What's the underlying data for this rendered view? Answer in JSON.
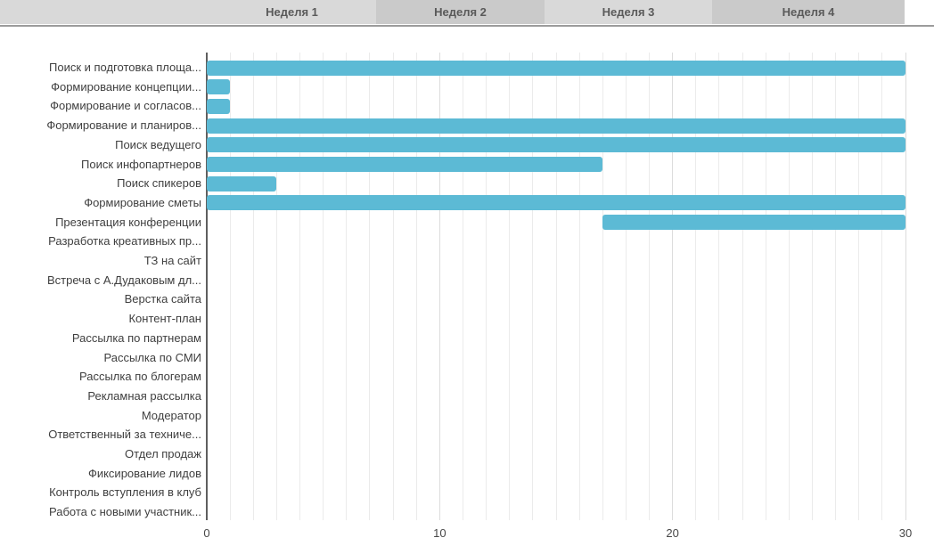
{
  "header": {
    "tabs": [
      {
        "label": "Неделя 1"
      },
      {
        "label": "Неделя 2"
      },
      {
        "label": "Неделя 3"
      },
      {
        "label": "Неделя 4"
      }
    ],
    "colors": {
      "light": "#d9d9d9",
      "dark": "#cacaca",
      "underline": "#9c9c9c",
      "text": "#5a5a5a"
    }
  },
  "chart_data": {
    "type": "bar",
    "orientation": "horizontal",
    "title": "",
    "xlabel": "",
    "ylabel": "",
    "xlim": [
      0,
      30
    ],
    "xticks": [
      0,
      10,
      20,
      30
    ],
    "grid": "vertical gridlines every 1 unit, major at 10/20/30, dark axis at 0",
    "legend": "none",
    "bar_color": "#5cbad5",
    "tasks": [
      {
        "label": "Поиск и подготовка площа...",
        "start": 0,
        "end": 30
      },
      {
        "label": "Формирование концепции...",
        "start": 0,
        "end": 1
      },
      {
        "label": "Формирование и согласов...",
        "start": 0,
        "end": 1
      },
      {
        "label": "Формирование и планиров...",
        "start": 0,
        "end": 30
      },
      {
        "label": "Поиск ведущего",
        "start": 0,
        "end": 30
      },
      {
        "label": "Поиск инфопартнеров",
        "start": 0,
        "end": 17
      },
      {
        "label": "Поиск спикеров",
        "start": 0,
        "end": 3
      },
      {
        "label": "Формирование сметы",
        "start": 0,
        "end": 30
      },
      {
        "label": "Презентация конференции",
        "start": 17,
        "end": 30
      },
      {
        "label": "Разработка креативных пр...",
        "start": null,
        "end": null
      },
      {
        "label": "ТЗ на сайт",
        "start": null,
        "end": null
      },
      {
        "label": "Встреча с А.Дудаковым дл...",
        "start": null,
        "end": null
      },
      {
        "label": "Верстка сайта",
        "start": null,
        "end": null
      },
      {
        "label": "Контент-план",
        "start": null,
        "end": null
      },
      {
        "label": "Рассылка по партнерам",
        "start": null,
        "end": null
      },
      {
        "label": "Рассылка по СМИ",
        "start": null,
        "end": null
      },
      {
        "label": "Рассылка по блогерам",
        "start": null,
        "end": null
      },
      {
        "label": "Рекламная рассылка",
        "start": null,
        "end": null
      },
      {
        "label": "Модератор",
        "start": null,
        "end": null
      },
      {
        "label": "Ответственный за техниче...",
        "start": null,
        "end": null
      },
      {
        "label": "Отдел продаж",
        "start": null,
        "end": null
      },
      {
        "label": "Фиксирование лидов",
        "start": null,
        "end": null
      },
      {
        "label": "Контроль вступления в клуб",
        "start": null,
        "end": null
      },
      {
        "label": "Работа с новыми участник...",
        "start": null,
        "end": null
      }
    ]
  }
}
